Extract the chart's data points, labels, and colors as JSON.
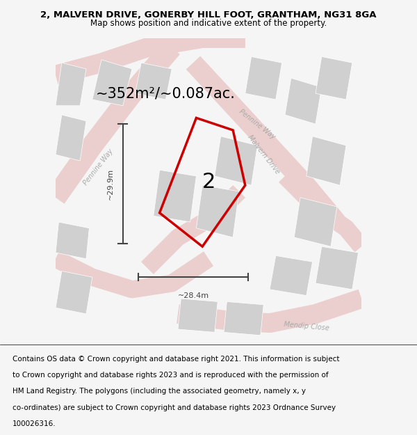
{
  "title": "2, MALVERN DRIVE, GONERBY HILL FOOT, GRANTHAM, NG31 8GA",
  "subtitle": "Map shows position and indicative extent of the property.",
  "area_text": "~352m²/~0.087ac.",
  "width_label": "~28.4m",
  "height_label": "~29.9m",
  "plot_number": "2",
  "footer_lines": [
    "Contains OS data © Crown copyright and database right 2021. This information is subject",
    "to Crown copyright and database rights 2023 and is reproduced with the permission of",
    "HM Land Registry. The polygons (including the associated geometry, namely x, y",
    "co-ordinates) are subject to Crown copyright and database rights 2023 Ordnance Survey",
    "100026316."
  ],
  "bg_color": "#f5f5f5",
  "map_bg": "#ffffff",
  "road_color": "#e8c8c8",
  "road_fill": "#f0d8d8",
  "building_color": "#d0d0d0",
  "plot_line_color": "#cc0000",
  "dimension_color": "#444444",
  "road_label_color": "#aaaaaa",
  "title_color": "#000000",
  "subtitle_color": "#000000",
  "area_text_color": "#000000",
  "plot_label_color": "#000000",
  "footer_color": "#000000",
  "title_fontsize": 9.5,
  "subtitle_fontsize": 8.5,
  "area_fontsize": 15,
  "label_fontsize": 8,
  "plot_label_fontsize": 22,
  "footer_fontsize": 7.5
}
